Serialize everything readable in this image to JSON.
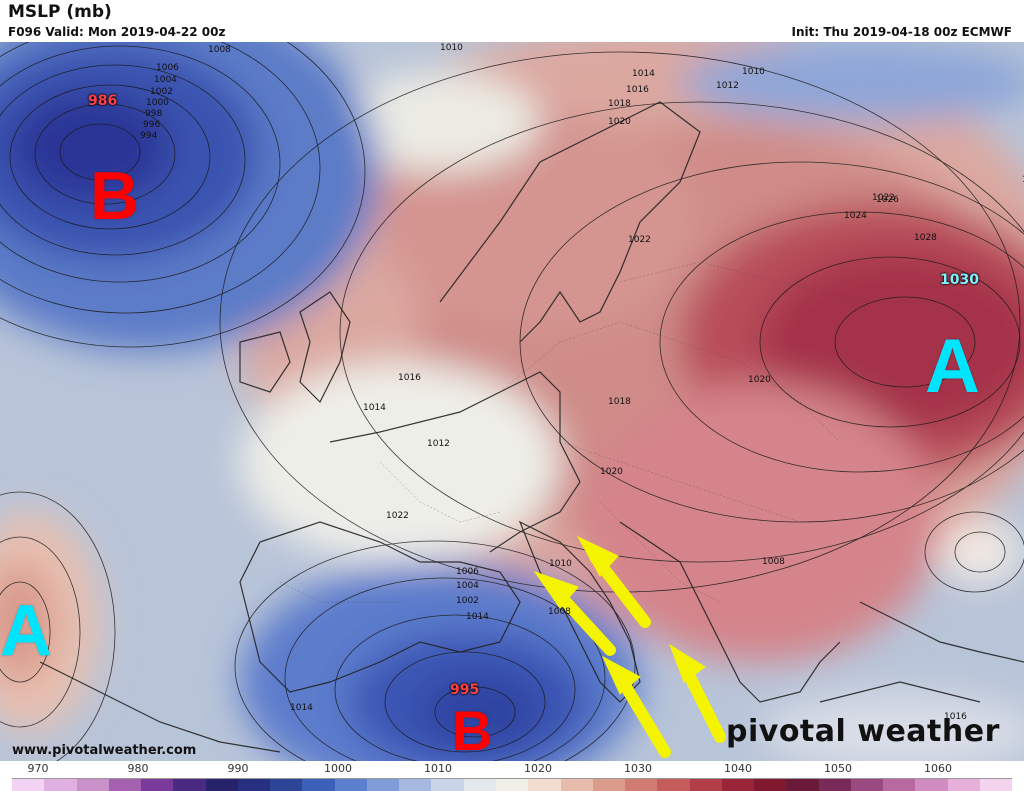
{
  "header": {
    "title": "MSLP (mb)",
    "valid": "F096 Valid: Mon 2019-04-22 00z",
    "init": "Init: Thu 2019-04-18 00z ECMWF"
  },
  "map": {
    "isobar_labels": [
      "1008",
      "1006",
      "1004",
      "1002",
      "1000",
      "998",
      "996",
      "994",
      "1010",
      "1014",
      "1016",
      "1018",
      "1020",
      "1010",
      "1012",
      "1022",
      "1024",
      "1026",
      "1028",
      "1022",
      "1018",
      "1016",
      "1014",
      "1012",
      "1022",
      "1020",
      "1018",
      "1020",
      "1008",
      "1006",
      "1004",
      "1002",
      "1014",
      "1010",
      "1008",
      "1014",
      "1016"
    ],
    "pressure_systems": [
      {
        "letter": "B",
        "value": "986",
        "kind": "low",
        "letter_color": "#ff0000",
        "value_color": "#ff4040"
      },
      {
        "letter": "A",
        "value": "1030",
        "kind": "high",
        "letter_color": "#00e5ff",
        "value_color": "#80f0ff"
      },
      {
        "letter": "A",
        "value": "",
        "kind": "high",
        "letter_color": "#00e5ff",
        "value_color": ""
      },
      {
        "letter": "B",
        "value": "995",
        "kind": "low",
        "letter_color": "#ff0000",
        "value_color": "#ff4040"
      }
    ],
    "arrow_color": "#f4f400"
  },
  "colorbar": {
    "labels": [
      "970",
      "980",
      "990",
      "1000",
      "1010",
      "1020",
      "1030",
      "1040",
      "1050",
      "1060"
    ],
    "colors": [
      "#f3d3f3",
      "#e0b0e0",
      "#c990c9",
      "#a560b0",
      "#7a3a9a",
      "#4a2a80",
      "#27236b",
      "#262f80",
      "#2c4596",
      "#3a60b8",
      "#5a7fcc",
      "#7f9dd6",
      "#a4b8e0",
      "#c8d4e8",
      "#e3e8ec",
      "#f0f0e8",
      "#f2dcd0",
      "#e8bcac",
      "#dc9c8c",
      "#d07c70",
      "#c45c5c",
      "#b23e48",
      "#9a2438",
      "#801830",
      "#6a1a38",
      "#7a2a58",
      "#9a4a80",
      "#b86aa0",
      "#d08cc0",
      "#e6b0da",
      "#f3d3ee"
    ]
  },
  "watermark": {
    "url": "www.pivotalweather.com",
    "brand": "pivotal weather"
  }
}
